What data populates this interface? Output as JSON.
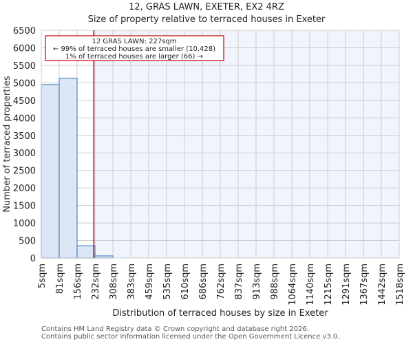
{
  "header": {
    "title": "12, GRAS LAWN, EXETER, EX2 4RZ",
    "subtitle": "Size of property relative to terraced houses in Exeter"
  },
  "annotation": {
    "line1": "12 GRAS LAWN: 227sqm",
    "line2": "← 99% of terraced houses are smaller (10,428)",
    "line3": "1% of terraced houses are larger (66) →",
    "marker_value": 227,
    "marker_color": "#cc0000"
  },
  "footer": {
    "line1": "Contains HM Land Registry data © Crown copyright and database right 2026.",
    "line2": "Contains public sector information licensed under the Open Government Licence v3.0."
  },
  "colors": {
    "bar_fill": "#dde6f4",
    "bar_stroke": "#5b8bd0",
    "highlight_bg": "#f0f4fc",
    "grid": "#cccccc",
    "marker": "#cc0000"
  },
  "chart_data": {
    "type": "bar",
    "title": "12, GRAS LAWN, EXETER, EX2 4RZ",
    "subtitle": "Size of property relative to terraced houses in Exeter",
    "xlabel": "Distribution of terraced houses by size in Exeter",
    "ylabel": "Number of terraced properties",
    "categories": [
      "5sqm",
      "81sqm",
      "156sqm",
      "232sqm",
      "308sqm",
      "383sqm",
      "459sqm",
      "535sqm",
      "610sqm",
      "686sqm",
      "762sqm",
      "837sqm",
      "913sqm",
      "988sqm",
      "1064sqm",
      "1140sqm",
      "1215sqm",
      "1291sqm",
      "1367sqm",
      "1442sqm",
      "1518sqm"
    ],
    "bin_edges": [
      5,
      81,
      156,
      232,
      308,
      383,
      459,
      535,
      610,
      686,
      762,
      837,
      913,
      988,
      1064,
      1140,
      1215,
      1291,
      1367,
      1442,
      1518
    ],
    "values": [
      4950,
      5130,
      350,
      60,
      0,
      0,
      0,
      0,
      0,
      0,
      0,
      0,
      0,
      0,
      0,
      0,
      0,
      0,
      0,
      0
    ],
    "yticks": [
      0,
      500,
      1000,
      1500,
      2000,
      2500,
      3000,
      3500,
      4000,
      4500,
      5000,
      5500,
      6000,
      6500
    ],
    "ylim": [
      0,
      6500
    ],
    "grid": true,
    "marker": {
      "x": 227,
      "label": "12 GRAS LAWN: 227sqm"
    }
  }
}
